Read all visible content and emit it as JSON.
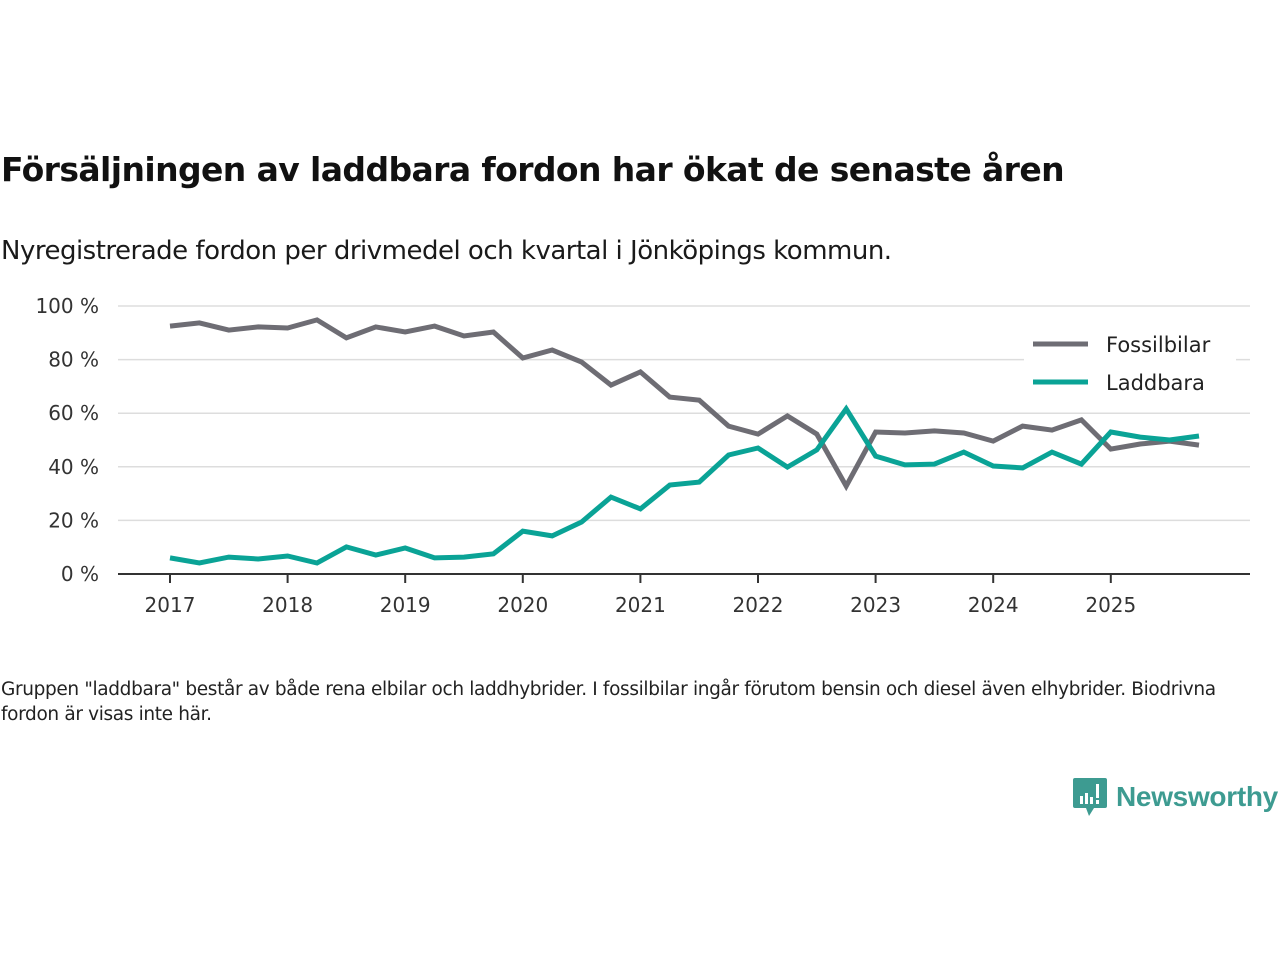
{
  "header": {
    "title": "Försäljningen av laddbara fordon har ökat de senaste åren",
    "subtitle": "Nyregistrerade fordon per drivmedel och kvartal i Jönköpings kommun."
  },
  "footer": {
    "note": "Gruppen \"laddbara\" består av både rena elbilar och laddhybrider. I fossilbilar ingår förutom bensin och diesel även elhybrider. Biodrivna fordon är visas inte här.",
    "brand": "Newsworthy"
  },
  "colors": {
    "fossil": "#6e6d74",
    "laddbara": "#0aa396",
    "grid": "#dddddd",
    "axis": "#333333",
    "brand": "#3d9b91"
  },
  "chart_data": {
    "type": "line",
    "title": "Försäljningen av laddbara fordon har ökat de senaste åren",
    "subtitle": "Nyregistrerade fordon per drivmedel och kvartal i Jönköpings kommun.",
    "xlabel": "",
    "ylabel": "",
    "ylim": [
      0,
      100
    ],
    "yticks": [
      0,
      20,
      40,
      60,
      80,
      100
    ],
    "ytick_labels": [
      "0 %",
      "20 %",
      "40 %",
      "60 %",
      "80 %",
      "100 %"
    ],
    "xticks": [
      2017,
      2018,
      2019,
      2020,
      2021,
      2022,
      2023,
      2024,
      2025
    ],
    "xtick_labels": [
      "2017",
      "2018",
      "2019",
      "2020",
      "2021",
      "2022",
      "2023",
      "2024",
      "2025"
    ],
    "xlim": [
      2016.58,
      2026.2
    ],
    "grid": true,
    "legend_position": "top-right",
    "x": [
      2017.0,
      2017.25,
      2017.5,
      2017.75,
      2018.0,
      2018.25,
      2018.5,
      2018.75,
      2019.0,
      2019.25,
      2019.5,
      2019.75,
      2020.0,
      2020.25,
      2020.5,
      2020.75,
      2021.0,
      2021.25,
      2021.5,
      2021.75,
      2022.0,
      2022.25,
      2022.5,
      2022.75,
      2023.0,
      2023.25,
      2023.5,
      2023.75,
      2024.0,
      2024.25,
      2024.5,
      2024.75,
      2025.0,
      2025.25,
      2025.5,
      2025.75
    ],
    "series": [
      {
        "name": "Fossilbilar",
        "color": "#6e6d74",
        "values": [
          92.5,
          93.7,
          91.0,
          92.2,
          91.8,
          94.8,
          88.1,
          92.2,
          90.3,
          92.5,
          88.8,
          90.3,
          80.6,
          83.6,
          79.1,
          70.5,
          75.4,
          66.0,
          64.9,
          55.2,
          52.2,
          59.0,
          52.2,
          32.8,
          53.0,
          52.6,
          53.4,
          52.6,
          49.6,
          55.2,
          53.7,
          57.5,
          46.6,
          48.5,
          49.6,
          48.1
        ]
      },
      {
        "name": "Laddbara",
        "color": "#0aa396",
        "values": [
          6.0,
          4.1,
          6.3,
          5.6,
          6.7,
          4.1,
          10.1,
          7.1,
          9.7,
          6.0,
          6.3,
          7.5,
          16.0,
          14.2,
          19.4,
          28.7,
          24.3,
          33.2,
          34.3,
          44.4,
          47.0,
          39.9,
          46.3,
          61.6,
          44.0,
          40.7,
          41.0,
          45.5,
          40.3,
          39.6,
          45.5,
          41.0,
          53.0,
          51.1,
          50.0,
          51.5
        ]
      }
    ]
  }
}
